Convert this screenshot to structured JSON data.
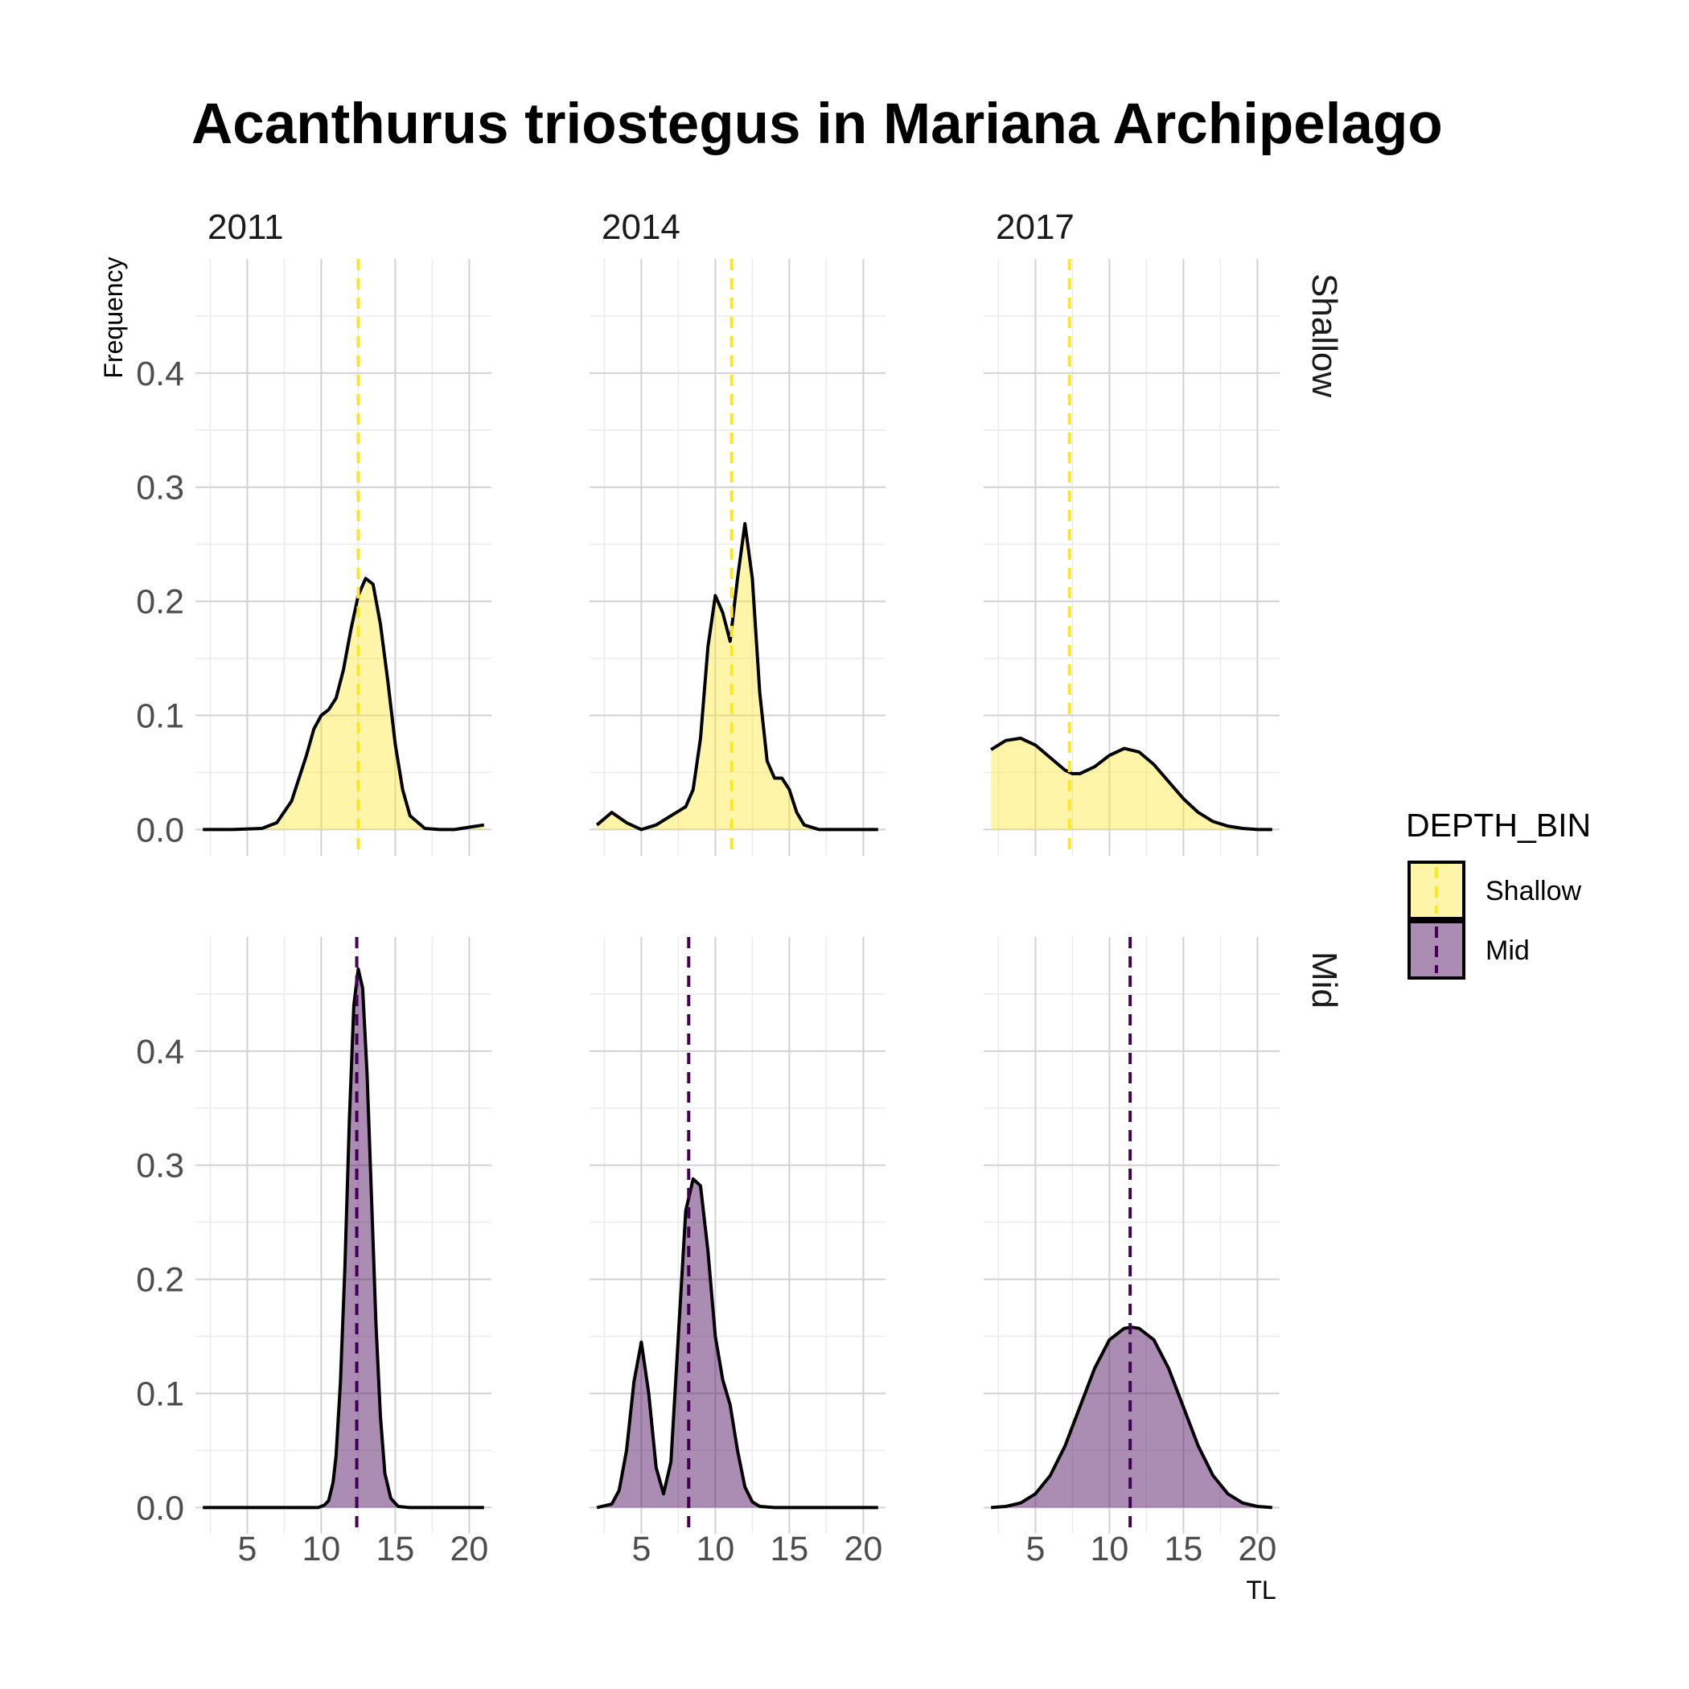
{
  "chart_data": {
    "type": "area",
    "title": "Acanthurus triostegus in Mariana Archipelago",
    "xlabel": "TL",
    "ylabel": "Frequency",
    "xlim": [
      1.5,
      21.5
    ],
    "ylim": [
      -0.023,
      0.5
    ],
    "x_ticks": [
      5,
      10,
      15,
      20
    ],
    "y_ticks": [
      0.0,
      0.1,
      0.2,
      0.3,
      0.4
    ],
    "y_tick_labels": [
      "0.0",
      "0.1",
      "0.2",
      "0.3",
      "0.4"
    ],
    "x_minor_ticks": [
      2.5,
      7.5,
      12.5,
      17.5
    ],
    "y_minor_ticks": [
      0.05,
      0.15,
      0.25,
      0.35,
      0.45
    ],
    "grid": true,
    "columns": [
      "2011",
      "2014",
      "2017"
    ],
    "rows": [
      "Shallow",
      "Mid"
    ],
    "legend": {
      "title": "DEPTH_BIN",
      "position": "right",
      "entries": [
        {
          "label": "Shallow",
          "fill": "#fde725",
          "line": "#fde725"
        },
        {
          "label": "Mid",
          "fill": "#440154",
          "line": "#440154"
        }
      ]
    },
    "colors": {
      "Shallow": {
        "fill": "#fde725",
        "fill_opacity": 0.4,
        "mean_line": "#fde725"
      },
      "Mid": {
        "fill": "#440154",
        "fill_opacity": 0.45,
        "mean_line": "#440154"
      }
    },
    "panels": [
      {
        "year": "2011",
        "depth": "Shallow",
        "mean": 12.5,
        "x": [
          2,
          4,
          6,
          7,
          8,
          9,
          9.5,
          10,
          10.5,
          11,
          11.5,
          12,
          12.5,
          13,
          13.5,
          14,
          14.5,
          15,
          15.5,
          16,
          17,
          18,
          19,
          20,
          21
        ],
        "y": [
          0.0,
          0.0,
          0.001,
          0.006,
          0.025,
          0.065,
          0.088,
          0.1,
          0.105,
          0.115,
          0.14,
          0.175,
          0.205,
          0.22,
          0.215,
          0.18,
          0.13,
          0.075,
          0.035,
          0.012,
          0.001,
          0.0,
          0.0,
          0.002,
          0.004
        ]
      },
      {
        "year": "2014",
        "depth": "Shallow",
        "mean": 11.1,
        "x": [
          2,
          3,
          4,
          5,
          6,
          7,
          7.5,
          8,
          8.5,
          9,
          9.5,
          10,
          10.5,
          11,
          11.5,
          12,
          12.5,
          13,
          13.5,
          14,
          14.5,
          15,
          15.5,
          16,
          17,
          18,
          19,
          20,
          21
        ],
        "y": [
          0.004,
          0.015,
          0.006,
          0.0,
          0.004,
          0.012,
          0.016,
          0.02,
          0.035,
          0.08,
          0.16,
          0.205,
          0.19,
          0.165,
          0.22,
          0.268,
          0.22,
          0.12,
          0.06,
          0.045,
          0.045,
          0.035,
          0.015,
          0.004,
          0.0,
          0.0,
          0.0,
          0.0,
          0.0
        ]
      },
      {
        "year": "2017",
        "depth": "Shallow",
        "mean": 7.3,
        "x": [
          2,
          3,
          4,
          5,
          6,
          7,
          7.5,
          8,
          9,
          10,
          11,
          12,
          13,
          14,
          15,
          16,
          17,
          18,
          19,
          20,
          21
        ],
        "y": [
          0.07,
          0.078,
          0.08,
          0.074,
          0.063,
          0.052,
          0.049,
          0.049,
          0.055,
          0.065,
          0.071,
          0.068,
          0.057,
          0.042,
          0.027,
          0.015,
          0.007,
          0.003,
          0.001,
          0.0,
          0.0
        ]
      },
      {
        "year": "2011",
        "depth": "Mid",
        "mean": 12.4,
        "x": [
          2,
          4,
          6,
          8,
          9,
          9.8,
          10.2,
          10.5,
          10.8,
          11,
          11.3,
          11.6,
          11.9,
          12.2,
          12.5,
          12.8,
          13.1,
          13.4,
          13.7,
          14,
          14.3,
          14.7,
          15.2,
          16,
          18,
          20,
          21
        ],
        "y": [
          0.0,
          0.0,
          0.0,
          0.0,
          0.0,
          0.0,
          0.002,
          0.006,
          0.022,
          0.045,
          0.11,
          0.21,
          0.34,
          0.44,
          0.472,
          0.455,
          0.38,
          0.27,
          0.16,
          0.08,
          0.03,
          0.008,
          0.001,
          0.0,
          0.0,
          0.0,
          0.0
        ]
      },
      {
        "year": "2014",
        "depth": "Mid",
        "mean": 8.2,
        "x": [
          2,
          3,
          3.5,
          4,
          4.5,
          5,
          5.5,
          6,
          6.5,
          7,
          7.5,
          8,
          8.5,
          9,
          9.5,
          10,
          10.5,
          11,
          11.5,
          12,
          12.5,
          13,
          14,
          15,
          17,
          19,
          21
        ],
        "y": [
          0.0,
          0.003,
          0.015,
          0.05,
          0.11,
          0.145,
          0.1,
          0.035,
          0.012,
          0.04,
          0.15,
          0.26,
          0.288,
          0.282,
          0.225,
          0.15,
          0.112,
          0.09,
          0.05,
          0.018,
          0.005,
          0.001,
          0.0,
          0.0,
          0.0,
          0.0,
          0.0
        ]
      },
      {
        "year": "2017",
        "depth": "Mid",
        "mean": 11.4,
        "x": [
          2,
          3,
          4,
          5,
          6,
          7,
          8,
          9,
          10,
          11,
          11.5,
          12,
          13,
          14,
          15,
          16,
          17,
          18,
          19,
          20,
          21
        ],
        "y": [
          0.0,
          0.001,
          0.004,
          0.012,
          0.028,
          0.054,
          0.088,
          0.122,
          0.147,
          0.157,
          0.158,
          0.157,
          0.147,
          0.122,
          0.088,
          0.054,
          0.028,
          0.012,
          0.004,
          0.001,
          0.0
        ]
      }
    ]
  }
}
